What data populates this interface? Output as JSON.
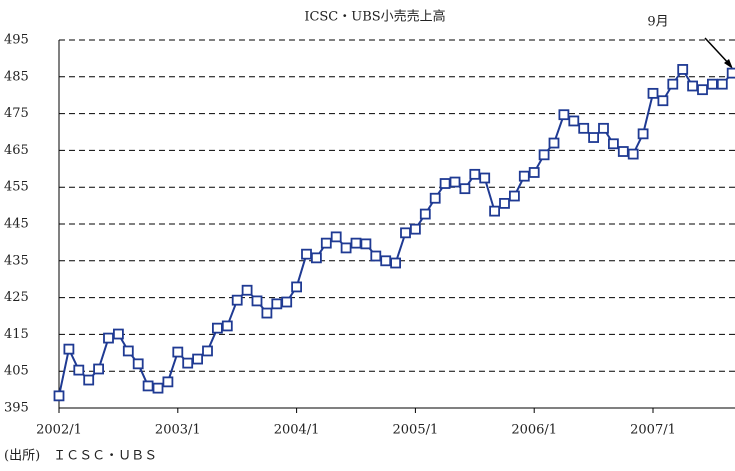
{
  "chart_data": {
    "type": "line",
    "title": "ICSC・UBS小売売上高",
    "categories": [
      "2002/1",
      null,
      null,
      null,
      null,
      null,
      null,
      null,
      null,
      null,
      null,
      null,
      "2003/1",
      null,
      null,
      null,
      null,
      null,
      null,
      null,
      null,
      null,
      null,
      null,
      "2004/1",
      null,
      null,
      null,
      null,
      null,
      null,
      null,
      null,
      null,
      null,
      null,
      "2005/1",
      null,
      null,
      null,
      null,
      null,
      null,
      null,
      null,
      null,
      null,
      null,
      "2006/1",
      null,
      null,
      null,
      null,
      null,
      null,
      null,
      null,
      null,
      null,
      null,
      "2007/1",
      null,
      null,
      null,
      null,
      null,
      null,
      null,
      null
    ],
    "values": [
      398.3,
      411,
      405.3,
      402.6,
      405.6,
      414,
      415.1,
      410.5,
      407,
      401,
      400.4,
      402.1,
      410.2,
      407.2,
      408.3,
      410.5,
      416.7,
      417.3,
      424.3,
      427,
      424.1,
      420.8,
      423.3,
      423.8,
      427.9,
      436.8,
      435.8,
      439.8,
      441.5,
      438.5,
      439.8,
      439.6,
      436.3,
      435,
      434.4,
      442.6,
      443.6,
      447.7,
      452,
      456,
      456.4,
      454.6,
      458.5,
      457.5,
      448.5,
      450.6,
      452.6,
      458,
      459,
      463.8,
      467,
      474.7,
      473,
      471,
      468.5,
      471,
      466.8,
      464.7,
      464,
      469.5,
      480.5,
      478.5,
      483,
      487,
      482.5,
      481.5,
      483,
      483,
      486
    ],
    "color": "#1f3a93",
    "ylim": [
      395,
      495
    ],
    "yticks": [
      395,
      405,
      415,
      425,
      435,
      445,
      455,
      465,
      475,
      485,
      495
    ],
    "grid": true,
    "annotation": "9月",
    "source": "(出所)　ＩＣＳＣ・ＵＢＳ"
  }
}
